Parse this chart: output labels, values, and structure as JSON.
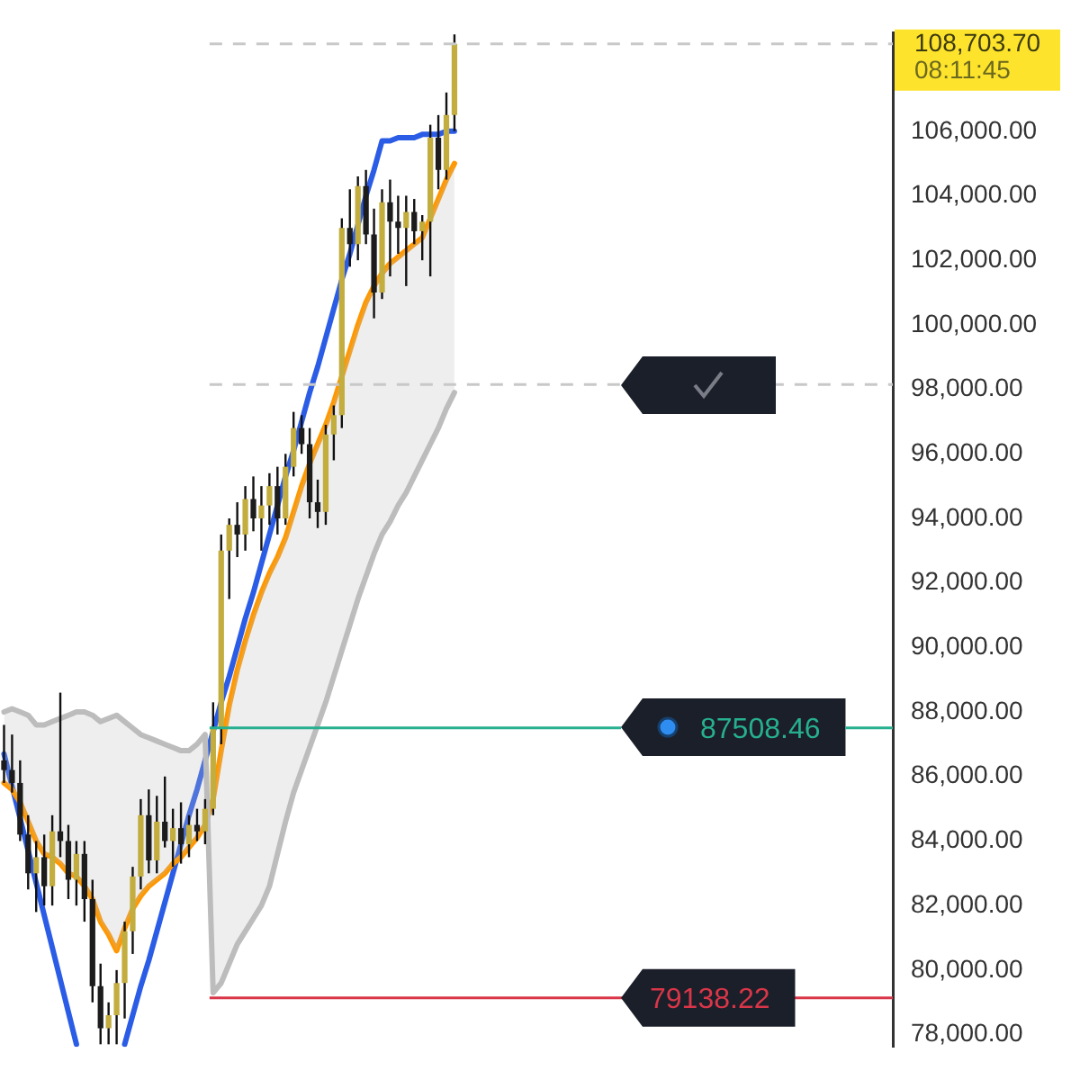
{
  "chart_data": {
    "type": "candlestick",
    "categories": [
      null,
      null,
      null,
      null,
      null,
      null,
      null,
      null,
      null,
      null,
      null,
      null,
      null,
      null,
      null,
      null,
      null,
      null,
      null,
      null,
      null,
      null,
      null,
      null,
      null,
      null,
      null,
      null,
      null,
      null,
      null,
      null,
      null,
      null,
      null,
      null,
      null,
      null,
      null,
      null,
      null,
      null,
      null,
      null,
      null,
      null,
      null,
      null,
      null,
      null,
      null,
      null,
      null,
      null,
      null,
      null,
      null,
      null,
      null,
      null,
      null,
      null,
      null,
      null,
      null,
      null,
      null,
      null,
      null,
      null,
      null,
      null,
      null,
      null,
      null,
      null,
      null,
      null,
      null,
      null,
      null,
      null,
      null,
      null,
      null,
      null,
      null,
      null,
      null,
      null,
      null,
      null,
      null,
      null,
      null,
      null,
      null,
      null,
      null,
      null,
      null,
      null,
      null,
      null,
      null,
      null,
      null,
      null,
      null,
      null,
      null
    ],
    "series": [
      {
        "type": "line",
        "color": "#bdbdbd",
        "values": [
          88000,
          88100,
          88000,
          87900,
          87600,
          87600,
          87700,
          87800,
          87900,
          88000,
          88000,
          87900,
          87700,
          87800,
          87900,
          87700,
          87500,
          87300,
          87200,
          87100,
          87000,
          86900,
          86800,
          86800,
          87000,
          87300,
          79300,
          79600,
          80200,
          80800,
          81200,
          81600,
          82000,
          82600,
          83600,
          84600,
          85500,
          86200,
          86900,
          87600,
          88300,
          89100,
          89900,
          90700,
          91500,
          92200,
          92900,
          93500,
          93900,
          94400,
          94800,
          95300,
          95800,
          96300,
          96800,
          97400,
          97900,
          null,
          null,
          null,
          null,
          null,
          null,
          null,
          null,
          null,
          null,
          null,
          null,
          null,
          null,
          null,
          null,
          null,
          null,
          null,
          null,
          null,
          null,
          null,
          null,
          null,
          null,
          null,
          null,
          null,
          null,
          null,
          null,
          null,
          null,
          null,
          null,
          null,
          null,
          null,
          null,
          null,
          null,
          null,
          null,
          null,
          null,
          null,
          null,
          null,
          null,
          null,
          null,
          null,
          null
        ],
        "lower": [
          85800,
          85600,
          85200,
          84600,
          84000,
          83600,
          83500,
          83300,
          83000,
          82900,
          82600,
          82200,
          81500,
          81100,
          80600,
          81300,
          81900,
          82300,
          82600,
          82800,
          83000,
          83300,
          83500,
          83800,
          84100,
          84500,
          79300,
          79600,
          80200,
          80800,
          81200,
          81600,
          82000,
          82600,
          83600,
          84600,
          85500,
          86200,
          86900,
          87600,
          88300,
          89100,
          89900,
          90700,
          91500,
          92200,
          92900,
          93500,
          93900,
          94400,
          94800,
          95300,
          95800,
          96300,
          96800,
          97400,
          97900,
          null,
          null,
          null,
          null,
          null,
          null,
          null,
          null,
          null,
          null,
          null,
          null,
          null,
          null,
          null,
          null,
          null,
          null,
          null,
          null,
          null,
          null,
          null,
          null,
          null,
          null,
          null,
          null,
          null,
          null,
          null,
          null,
          null,
          null,
          null,
          null,
          null,
          null,
          null,
          null,
          null,
          null,
          null,
          null,
          null,
          null,
          null,
          null,
          null,
          null,
          null,
          null,
          null,
          null
        ],
        "upper": [
          88000,
          88100,
          88000,
          87900,
          87600,
          87600,
          87700,
          87800,
          87900,
          88000,
          88000,
          87900,
          87700,
          87800,
          87900,
          87700,
          87500,
          87300,
          87200,
          87100,
          87000,
          86900,
          86800,
          86800,
          87000,
          87300,
          85300,
          86800,
          88200,
          89300,
          90200,
          91000,
          91700,
          92300,
          92800,
          93400,
          94200,
          95000,
          95700,
          96300,
          96900,
          97600,
          98400,
          99200,
          100000,
          100700,
          101200,
          101600,
          101900,
          102100,
          102300,
          102500,
          102700,
          103300,
          103900,
          104500,
          105000,
          null,
          null,
          null,
          null,
          null,
          null,
          null,
          null,
          null,
          null,
          null,
          null,
          null,
          null,
          null,
          null,
          null,
          null,
          null,
          null,
          null,
          null,
          null,
          null,
          null,
          null,
          null,
          null,
          null,
          null,
          null,
          null,
          null,
          null,
          null,
          null,
          null,
          null,
          null,
          null,
          null,
          null,
          null,
          null,
          null,
          null,
          null,
          null,
          null,
          null,
          null,
          null,
          null,
          null
        ]
      },
      {
        "type": "line",
        "color": "#ff9800",
        "values": [
          85800,
          85600,
          85200,
          84600,
          84000,
          83600,
          83500,
          83300,
          83000,
          82900,
          82600,
          82200,
          81500,
          81100,
          80600,
          81300,
          81900,
          82300,
          82600,
          82800,
          83000,
          83300,
          83500,
          83800,
          84100,
          84500,
          85300,
          86800,
          88200,
          89300,
          90200,
          91000,
          91700,
          92300,
          92800,
          93400,
          94200,
          95000,
          95700,
          96300,
          96900,
          97600,
          98400,
          99200,
          100000,
          100700,
          101200,
          101600,
          101900,
          102100,
          102300,
          102500,
          102700,
          103300,
          103900,
          104500,
          105000,
          null,
          null,
          null,
          null,
          null,
          null,
          null,
          null,
          null,
          null,
          null,
          null,
          null,
          null,
          null,
          null,
          null,
          null,
          null,
          null,
          null,
          null,
          null,
          null,
          null,
          null,
          null,
          null,
          null,
          null,
          null,
          null,
          null,
          null,
          null,
          null,
          null,
          null,
          null,
          null,
          null,
          null,
          null,
          null,
          null,
          null,
          null,
          null,
          null,
          null,
          null,
          null,
          null,
          null
        ]
      },
      {
        "type": "line",
        "color": "#2b5ce6",
        "values": [
          86700,
          85700,
          84700,
          83700,
          82700,
          81700,
          80700,
          79700,
          78700,
          77700,
          null,
          null,
          null,
          null,
          null,
          77700,
          78600,
          79500,
          80300,
          81200,
          82100,
          83000,
          83900,
          84800,
          85600,
          86500,
          87400,
          88300,
          89100,
          90000,
          90900,
          91700,
          92600,
          93500,
          94400,
          95300,
          96100,
          97000,
          97900,
          98700,
          99600,
          100500,
          101400,
          102200,
          103100,
          104000,
          104800,
          105700,
          105700,
          105800,
          105800,
          105800,
          105900,
          105900,
          105900,
          106000,
          106000,
          null,
          null,
          null,
          null,
          null,
          null,
          null,
          null,
          null,
          null,
          null,
          null,
          null,
          null,
          null,
          null,
          null,
          null,
          null,
          null,
          null,
          null,
          null,
          null,
          null,
          null,
          null,
          null,
          null,
          null,
          null,
          null,
          null,
          null,
          null,
          null,
          null,
          null,
          null,
          null,
          null,
          null,
          null,
          null,
          null,
          null,
          null,
          null,
          null,
          null,
          null,
          null,
          null,
          null
        ]
      },
      {
        "type": "candlestick",
        "ohlc": [
          [
            86500,
            87600,
            85800,
            86200
          ],
          [
            86200,
            87300,
            85500,
            85800
          ],
          [
            85800,
            86500,
            84000,
            84200
          ],
          [
            84200,
            84800,
            82500,
            83000
          ],
          [
            83000,
            84000,
            81800,
            83500
          ],
          [
            83500,
            84200,
            82000,
            82600
          ],
          [
            82600,
            84800,
            82000,
            84300
          ],
          [
            84300,
            88600,
            83500,
            84000
          ],
          [
            84000,
            84500,
            82200,
            82800
          ],
          [
            82800,
            84000,
            82000,
            83600
          ],
          [
            83600,
            84000,
            81500,
            82200
          ],
          [
            82200,
            82800,
            79000,
            79500
          ],
          [
            79500,
            80200,
            77700,
            78200
          ],
          [
            78200,
            79000,
            77700,
            78600
          ],
          [
            78600,
            80000,
            77700,
            79600
          ],
          [
            79600,
            81500,
            78500,
            81200
          ],
          [
            81200,
            83200,
            80500,
            82900
          ],
          [
            82900,
            85300,
            82500,
            84800
          ],
          [
            84800,
            85600,
            83000,
            83400
          ],
          [
            83400,
            85400,
            83000,
            84600
          ],
          [
            84600,
            86000,
            83800,
            84000
          ],
          [
            84000,
            85000,
            83200,
            84400
          ],
          [
            84400,
            85200,
            83300,
            83900
          ],
          [
            83900,
            84800,
            83500,
            84500
          ],
          [
            84500,
            85000,
            84000,
            84300
          ],
          [
            84300,
            85300,
            83900,
            85000
          ],
          [
            85000,
            88300,
            84800,
            87500
          ],
          [
            87500,
            93500,
            87000,
            93000
          ],
          [
            93000,
            94000,
            91500,
            93800
          ],
          [
            93800,
            94500,
            92800,
            93500
          ],
          [
            93500,
            95000,
            93000,
            94600
          ],
          [
            94600,
            95300,
            93600,
            94000
          ],
          [
            94000,
            95000,
            93000,
            94400
          ],
          [
            94400,
            95400,
            93800,
            95000
          ],
          [
            95000,
            95600,
            93500,
            94000
          ],
          [
            94000,
            96000,
            93800,
            95600
          ],
          [
            95600,
            97300,
            95300,
            96800
          ],
          [
            96800,
            97200,
            96000,
            96300
          ],
          [
            96300,
            96800,
            94000,
            94500
          ],
          [
            94500,
            95200,
            93700,
            94200
          ],
          [
            94200,
            96900,
            93800,
            96600
          ],
          [
            96600,
            97500,
            95800,
            97200
          ],
          [
            97200,
            103300,
            96800,
            103000
          ],
          [
            103000,
            104200,
            101800,
            102500
          ],
          [
            102500,
            104600,
            102000,
            104300
          ],
          [
            104300,
            104800,
            102500,
            102800
          ],
          [
            102800,
            103600,
            100200,
            101000
          ],
          [
            101000,
            104200,
            100800,
            103800
          ],
          [
            103800,
            104500,
            101500,
            103200
          ],
          [
            103200,
            104000,
            102200,
            103000
          ],
          [
            103000,
            104000,
            101200,
            103500
          ],
          [
            103500,
            103900,
            102500,
            102900
          ],
          [
            102900,
            103400,
            102000,
            103200
          ],
          [
            103200,
            106200,
            101500,
            105800
          ],
          [
            105800,
            106500,
            104200,
            104800
          ],
          [
            104800,
            107200,
            104500,
            106500
          ],
          [
            106500,
            109000,
            106000,
            108703.7
          ],
          null,
          null,
          null,
          null,
          null,
          null,
          null,
          null,
          null,
          null,
          null,
          null,
          null,
          null,
          null,
          null,
          null,
          null,
          null,
          null,
          null,
          null,
          null,
          null,
          null,
          null,
          null,
          null,
          null,
          null,
          null,
          null,
          null,
          null,
          null,
          null,
          null,
          null,
          null,
          null,
          null,
          null,
          null,
          null,
          null,
          null,
          null,
          null,
          null,
          null,
          null,
          null,
          null,
          null
        ],
        "colors": [
          "#1c1c1c",
          "#1c1c1c",
          "#1c1c1c",
          "#1c1c1c",
          "#c2ad3e",
          "#1c1c1c",
          "#c2ad3e",
          "#1c1c1c",
          "#1c1c1c",
          "#c2ad3e",
          "#1c1c1c",
          "#1c1c1c",
          "#1c1c1c",
          "#c2ad3e",
          "#c2ad3e",
          "#c2ad3e",
          "#c2ad3e",
          "#c2ad3e",
          "#1c1c1c",
          "#c2ad3e",
          "#1c1c1c",
          "#c2ad3e",
          "#1c1c1c",
          "#c2ad3e",
          "#1c1c1c",
          "#c2ad3e",
          "#c2ad3e",
          "#c2ad3e",
          "#c2ad3e",
          "#1c1c1c",
          "#c2ad3e",
          "#1c1c1c",
          "#c2ad3e",
          "#c2ad3e",
          "#1c1c1c",
          "#c2ad3e",
          "#c2ad3e",
          "#1c1c1c",
          "#1c1c1c",
          "#1c1c1c",
          "#c2ad3e",
          "#c2ad3e",
          "#c2ad3e",
          "#1c1c1c",
          "#c2ad3e",
          "#1c1c1c",
          "#1c1c1c",
          "#c2ad3e",
          "#1c1c1c",
          "#1c1c1c",
          "#c2ad3e",
          "#1c1c1c",
          "#c2ad3e",
          "#c2ad3e",
          "#1c1c1c",
          "#c2ad3e",
          "#c2ad3e",
          null,
          null,
          null,
          null,
          null,
          null,
          null,
          null,
          null,
          null,
          null,
          null,
          null,
          null,
          null,
          null,
          null,
          null,
          null,
          null,
          null,
          null,
          null,
          null,
          null,
          null,
          null,
          null,
          null,
          null,
          null,
          null,
          null,
          null,
          null,
          null,
          null,
          null,
          null,
          null,
          null,
          null,
          null,
          null,
          null,
          null,
          null,
          null,
          null,
          null,
          null,
          null,
          null,
          null
        ]
      }
    ],
    "ylim": [
      77620,
      109040
    ],
    "yticks": [
      {
        "value": 78000,
        "label": "78,000.00"
      },
      {
        "value": 80000,
        "label": "80,000.00"
      },
      {
        "value": 82000,
        "label": "82,000.00"
      },
      {
        "value": 84000,
        "label": "84,000.00"
      },
      {
        "value": 86000,
        "label": "86,000.00"
      },
      {
        "value": 88000,
        "label": "88,000.00"
      },
      {
        "value": 90000,
        "label": "90,000.00"
      },
      {
        "value": 92000,
        "label": "92,000.00"
      },
      {
        "value": 94000,
        "label": "94,000.00"
      },
      {
        "value": 96000,
        "label": "96,000.00"
      },
      {
        "value": 98000,
        "label": "98,000.00"
      },
      {
        "value": 100000,
        "label": "100,000.00"
      },
      {
        "value": 102000,
        "label": "102,000.00"
      },
      {
        "value": 104000,
        "label": "104,000.00"
      },
      {
        "value": 106000,
        "label": "106,000.00"
      }
    ],
    "tick_labels": "y",
    "marker": "none",
    "ref_lines": [
      {
        "axis": "y",
        "value": 108703.7,
        "label": "108,703.70",
        "line_style": "dashed",
        "color": "#c8c8c8"
      },
      {
        "axis": "y",
        "value": 98150,
        "line_style": "dashed",
        "color": "#c8c8c8"
      },
      {
        "axis": "y",
        "value": 87508.46,
        "label": "87508.46",
        "color": "#26b08f"
      },
      {
        "axis": "y",
        "value": 79138.22,
        "label": "79138.22",
        "color": "#d93648"
      }
    ],
    "annotations": [
      "08:11:45"
    ]
  }
}
